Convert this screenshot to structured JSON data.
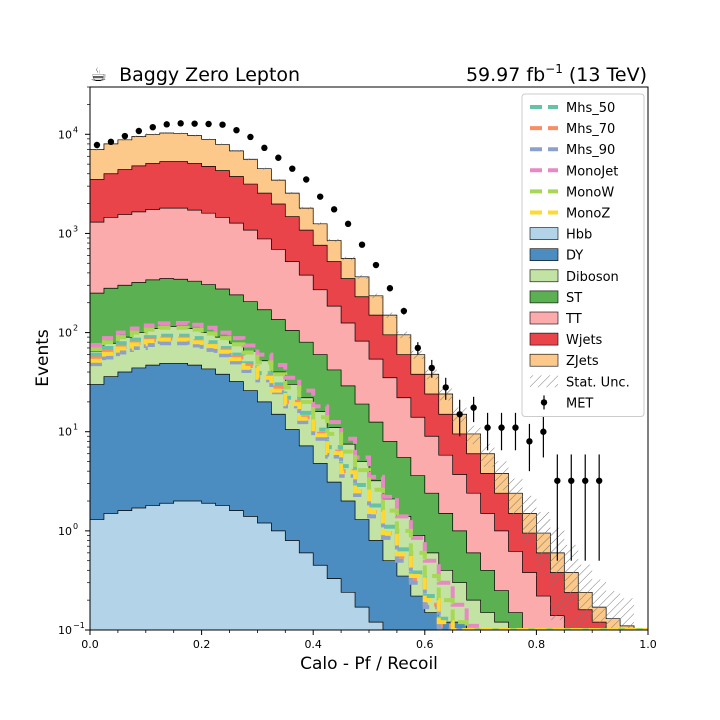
{
  "header": {
    "title_icon": "coffee-cup-icon",
    "title_icon_glyph": "☕",
    "title": "Baggy Zero Lepton",
    "lumi_value": "59.97 fb",
    "lumi_exp": "−1",
    "lumi_energy": " (13 TeV)"
  },
  "chart_data": {
    "type": "bar",
    "title": "Baggy Zero Lepton",
    "xlabel": "Calo - Pf / Recoil",
    "ylabel": "Events",
    "xlim": [
      0,
      1
    ],
    "ylim": [
      0.1,
      30000
    ],
    "yscale": "log",
    "x_ticks": [
      "0.0",
      "0.2",
      "0.4",
      "0.6",
      "0.8",
      "1.0"
    ],
    "y_ticks": [
      {
        "value": 0.1,
        "mant": "10",
        "exp": "−1"
      },
      {
        "value": 1,
        "mant": "10",
        "exp": "0"
      },
      {
        "value": 10,
        "mant": "10",
        "exp": "1"
      },
      {
        "value": 100,
        "mant": "10",
        "exp": "2"
      },
      {
        "value": 1000,
        "mant": "10",
        "exp": "3"
      },
      {
        "value": 10000,
        "mant": "10",
        "exp": "4"
      }
    ],
    "bin_width": 0.025,
    "legend_position": "top-right",
    "stack_cumulative": {
      "Hbb": [
        1.3,
        1.5,
        1.6,
        1.7,
        1.8,
        1.9,
        2.0,
        2.0,
        1.9,
        1.8,
        1.6,
        1.4,
        1.2,
        1.0,
        0.8,
        0.6,
        0.45,
        0.33,
        0.24,
        0.17,
        0.12,
        0.1,
        0.1,
        0.1,
        0.1,
        0.1,
        0.1,
        0.1,
        0.1,
        0.1,
        0.1,
        0.1,
        0.1,
        0.1,
        0.1,
        0.1,
        0.1,
        0.1,
        0.1,
        0.1
      ],
      "DY": [
        30,
        36,
        40,
        44,
        47,
        49,
        49,
        47,
        43,
        38,
        32,
        26,
        20,
        15,
        10.5,
        7.2,
        4.8,
        3.1,
        2.0,
        1.3,
        0.8,
        0.5,
        0.35,
        0.22,
        0.15,
        0.12,
        0.12,
        0.1,
        0.1,
        0.1,
        0.1,
        0.1,
        0.1,
        0.1,
        0.1,
        0.1,
        0.1,
        0.1,
        0.1,
        0.1
      ],
      "Diboson": [
        65,
        78,
        90,
        100,
        110,
        115,
        115,
        110,
        100,
        90,
        78,
        65,
        52,
        40,
        30,
        22,
        16,
        11,
        7.5,
        5.0,
        3.2,
        2.1,
        1.4,
        0.9,
        0.6,
        0.4,
        0.3,
        0.2,
        0.15,
        0.12,
        0.1,
        0.1,
        0.1,
        0.1,
        0.1,
        0.1,
        0.1,
        0.1,
        0.1,
        0.1
      ],
      "ST": [
        250,
        280,
        300,
        320,
        340,
        350,
        345,
        330,
        305,
        275,
        240,
        205,
        170,
        135,
        105,
        80,
        60,
        42,
        29,
        19,
        12.5,
        8,
        5.5,
        3.6,
        2.4,
        1.5,
        1.0,
        0.6,
        0.4,
        0.25,
        0.15,
        0.1,
        0.1,
        0.1,
        0.1,
        0.1,
        0.1,
        0.1,
        0.1,
        0.1
      ],
      "TT": [
        1300,
        1450,
        1550,
        1650,
        1750,
        1800,
        1800,
        1720,
        1600,
        1450,
        1270,
        1080,
        880,
        690,
        520,
        380,
        270,
        185,
        125,
        82,
        54,
        35,
        22,
        14,
        9,
        5.8,
        3.7,
        2.4,
        1.5,
        1.0,
        0.62,
        0.38,
        0.22,
        0.14,
        0.1,
        0.1,
        0.1,
        0.1,
        0.1,
        0.1
      ],
      "Wjets": [
        3500,
        4000,
        4400,
        4800,
        5100,
        5300,
        5300,
        5100,
        4750,
        4300,
        3750,
        3150,
        2550,
        1980,
        1480,
        1080,
        760,
        520,
        350,
        230,
        150,
        95,
        60,
        38,
        24,
        15,
        9.5,
        6,
        3.8,
        2.4,
        1.5,
        0.95,
        0.6,
        0.38,
        0.24,
        0.16,
        0.12,
        0.1,
        0.1,
        0.1
      ],
      "ZJets": [
        7000,
        8000,
        8800,
        9500,
        10000,
        10300,
        10200,
        9700,
        8900,
        7900,
        6800,
        5600,
        4500,
        3450,
        2550,
        1800,
        1250,
        850,
        560,
        365,
        235,
        150,
        95,
        60,
        38,
        24,
        15,
        9.5,
        6,
        3.8,
        2.4,
        1.5,
        0.95,
        0.6,
        0.38,
        0.24,
        0.17,
        0.13,
        0.11,
        0.1
      ]
    },
    "stack_order": [
      "Hbb",
      "DY",
      "Diboson",
      "ST",
      "TT",
      "Wjets",
      "ZJets"
    ],
    "signals": [
      {
        "name": "Mhs_50",
        "color": "#66c2a5",
        "values": [
          60,
          70,
          78,
          85,
          90,
          93,
          93,
          88,
          80,
          70,
          60,
          49,
          39,
          30,
          22,
          15.5,
          10.5,
          7,
          4.5,
          2.9,
          1.8,
          1.1,
          0.65,
          0.38,
          0.22,
          0.13,
          0.1,
          0.1,
          0.1,
          0.1,
          0.1,
          0.1,
          0.1,
          0.1,
          0.1,
          0.1,
          0.1,
          0.1,
          0.1,
          0.1
        ]
      },
      {
        "name": "Mhs_70",
        "color": "#fc8d62",
        "values": [
          55,
          64,
          72,
          79,
          84,
          87,
          87,
          82,
          75,
          66,
          56,
          46,
          36,
          28,
          20,
          14,
          9.5,
          6.3,
          4.0,
          2.5,
          1.55,
          0.95,
          0.55,
          0.32,
          0.18,
          0.11,
          0.1,
          0.1,
          0.1,
          0.1,
          0.1,
          0.1,
          0.1,
          0.1,
          0.1,
          0.1,
          0.1,
          0.1,
          0.1,
          0.1
        ]
      },
      {
        "name": "Mhs_90",
        "color": "#8da0cb",
        "values": [
          48,
          56,
          63,
          70,
          75,
          78,
          78,
          74,
          67,
          59,
          50,
          41,
          33,
          25,
          18,
          12.5,
          8.5,
          5.6,
          3.6,
          2.3,
          1.4,
          0.85,
          0.5,
          0.3,
          0.17,
          0.1,
          0.1,
          0.1,
          0.1,
          0.1,
          0.1,
          0.1,
          0.1,
          0.1,
          0.1,
          0.1,
          0.1,
          0.1,
          0.1,
          0.1
        ]
      },
      {
        "name": "MonoJet",
        "color": "#e78ac3",
        "values": [
          75,
          88,
          100,
          110,
          118,
          124,
          125,
          120,
          112,
          100,
          88,
          74,
          60,
          47,
          35,
          26,
          18,
          12.5,
          8.5,
          5.5,
          3.5,
          2.2,
          1.4,
          0.85,
          0.5,
          0.3,
          0.18,
          0.11,
          0.1,
          0.1,
          0.1,
          0.1,
          0.1,
          0.1,
          0.1,
          0.1,
          0.1,
          0.1,
          0.1,
          0.1
        ]
      },
      {
        "name": "MonoW",
        "color": "#a6d854",
        "values": [
          68,
          80,
          90,
          100,
          107,
          112,
          112,
          107,
          98,
          88,
          76,
          63,
          50,
          38,
          28,
          20,
          14,
          9.5,
          6.3,
          4.1,
          2.6,
          1.6,
          1.0,
          0.6,
          0.35,
          0.2,
          0.12,
          0.1,
          0.1,
          0.1,
          0.1,
          0.1,
          0.1,
          0.1,
          0.1,
          0.1,
          0.1,
          0.1,
          0.1,
          0.1
        ]
      },
      {
        "name": "MonoZ",
        "color": "#ffd92f",
        "values": [
          52,
          61,
          69,
          76,
          82,
          85,
          85,
          80,
          73,
          64,
          54,
          44,
          35,
          26,
          19,
          13.5,
          9.2,
          6.1,
          3.9,
          2.5,
          1.55,
          0.95,
          0.58,
          0.35,
          0.2,
          0.12,
          0.1,
          0.1,
          0.1,
          0.1,
          0.1,
          0.1,
          0.1,
          0.1,
          0.1,
          0.1,
          0.1,
          0.1,
          0.1,
          0.1
        ]
      }
    ],
    "data_points": {
      "name": "MET",
      "x": [
        0.0125,
        0.0375,
        0.0625,
        0.0875,
        0.1125,
        0.1375,
        0.1625,
        0.1875,
        0.2125,
        0.2375,
        0.2625,
        0.2875,
        0.3125,
        0.3375,
        0.3625,
        0.3875,
        0.4125,
        0.4375,
        0.4625,
        0.4875,
        0.5125,
        0.5375,
        0.5625,
        0.5875,
        0.6125,
        0.6375,
        0.6625,
        0.6875,
        0.7125,
        0.7375,
        0.7625,
        0.7875,
        0.8125,
        0.8375,
        0.8625,
        0.8875,
        0.9125
      ],
      "y": [
        7800,
        8400,
        9600,
        10800,
        11800,
        12600,
        12900,
        12800,
        12700,
        12500,
        11000,
        9400,
        7300,
        5800,
        4500,
        3500,
        2350,
        1750,
        1250,
        770,
        480,
        280,
        165,
        70,
        44,
        28,
        15,
        17.5,
        11,
        11,
        11,
        8,
        10,
        3.2,
        3.2,
        3.2,
        3.2
      ],
      "yerr": [
        90,
        90,
        100,
        105,
        110,
        115,
        115,
        115,
        115,
        115,
        105,
        100,
        90,
        80,
        70,
        60,
        50,
        42,
        36,
        28,
        22,
        17,
        13,
        10,
        9,
        7,
        6,
        5,
        4.5,
        4.5,
        4.5,
        4,
        4.5,
        2.7,
        2.7,
        2.7,
        2.7
      ]
    },
    "stat_unc_label": "Stat. Unc.",
    "legend": [
      {
        "label": "Mhs_50",
        "kind": "dash",
        "color": "#66c2a5"
      },
      {
        "label": "Mhs_70",
        "kind": "dash",
        "color": "#fc8d62"
      },
      {
        "label": "Mhs_90",
        "kind": "dash",
        "color": "#8da0cb"
      },
      {
        "label": "MonoJet",
        "kind": "dash",
        "color": "#e78ac3"
      },
      {
        "label": "MonoW",
        "kind": "dash",
        "color": "#a6d854"
      },
      {
        "label": "MonoZ",
        "kind": "dash",
        "color": "#ffd92f"
      },
      {
        "label": "Hbb",
        "kind": "box",
        "color": "#b3d4e8"
      },
      {
        "label": "DY",
        "kind": "box",
        "color": "#4b8dc0"
      },
      {
        "label": "Diboson",
        "kind": "box",
        "color": "#c2e3a3"
      },
      {
        "label": "ST",
        "kind": "box",
        "color": "#5bb051"
      },
      {
        "label": "TT",
        "kind": "box",
        "color": "#fbabab"
      },
      {
        "label": "Wjets",
        "kind": "box",
        "color": "#e8444a"
      },
      {
        "label": "ZJets",
        "kind": "box",
        "color": "#fdc98a"
      },
      {
        "label": "Stat. Unc.",
        "kind": "hatch",
        "color": "#888888"
      },
      {
        "label": "MET",
        "kind": "point",
        "color": "#000000"
      }
    ]
  }
}
